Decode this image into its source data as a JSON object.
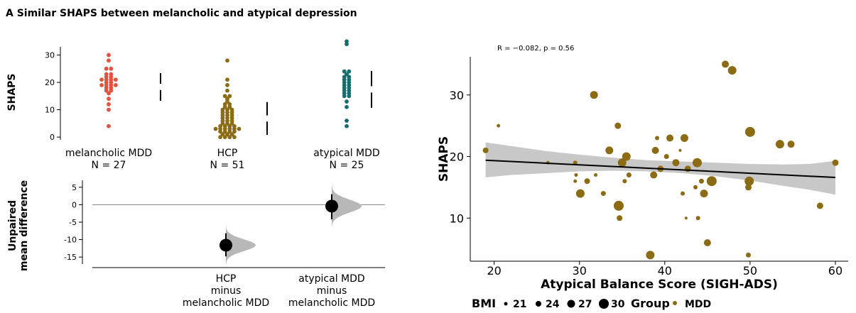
{
  "figure_title": "A  Similar SHAPS between melancholic and atypical depression",
  "colors": {
    "melancholic": "#e0533e",
    "hcp": "#8b6b14",
    "atypical": "#176d6d",
    "scatter_point": "#8b6b14",
    "ci_band": "#c8c8c8",
    "dabest_curve": "#b8b8b8"
  },
  "chart_data": [
    {
      "type": "scatter",
      "panel": "swarm",
      "ylabel": "SHAPS",
      "ylim": [
        -1,
        33
      ],
      "yticks": [
        0,
        10,
        20,
        30
      ],
      "grid": false,
      "groups": [
        {
          "label": "melancholic MDD\nN = 27",
          "color_key": "melancholic",
          "values": [
            30,
            28,
            25,
            25,
            23,
            23,
            22,
            22,
            21,
            21,
            21,
            21,
            20,
            20,
            19,
            19,
            19,
            19,
            18,
            18,
            17,
            17,
            16,
            14,
            12,
            10,
            4
          ],
          "mean_sd_bar": [
            13.3,
            17.2,
            19.5,
            23.4
          ]
        },
        {
          "label": "HCP\nN = 51",
          "color_key": "hcp",
          "values": [
            28,
            21,
            19,
            17,
            15,
            15,
            14,
            13,
            12,
            12,
            11,
            11,
            10,
            10,
            10,
            9,
            9,
            9,
            8,
            8,
            8,
            7,
            7,
            7,
            6,
            6,
            6,
            5,
            5,
            5,
            4,
            4,
            4,
            4,
            3,
            3,
            3,
            3,
            3,
            3,
            2,
            2,
            2,
            2,
            1,
            1,
            1,
            0,
            0,
            0,
            0
          ],
          "mean_sd_bar": [
            0.8,
            5.7,
            7.9,
            12.8
          ]
        },
        {
          "label": "atypical MDD\nN = 25",
          "color_key": "atypical",
          "values": [
            35,
            34,
            24,
            24,
            23,
            22,
            22,
            21,
            21,
            20,
            20,
            19,
            19,
            18,
            18,
            17,
            17,
            16,
            16,
            15,
            15,
            13,
            11,
            6,
            4
          ],
          "mean_sd_bar": [
            10.7,
            16.3,
            18.6,
            24.2
          ]
        }
      ]
    },
    {
      "type": "scatter",
      "panel": "estimation",
      "ylabel": "Unpaired\nmean difference",
      "ylim": [
        -17,
        7
      ],
      "yticks": [
        5,
        0,
        -5,
        -10,
        -15
      ],
      "zero_line": true,
      "comparisons": [
        {
          "label": "HCP\nminus\nmelancholic MDD",
          "mean_difference": -11.6,
          "ci": [
            -14.8,
            -8.2
          ]
        },
        {
          "label": "atypical MDD\nminus\nmelancholic MDD",
          "mean_difference": -0.4,
          "ci": [
            -4.2,
            3.0
          ]
        }
      ]
    },
    {
      "type": "scatter",
      "panel": "correlation",
      "xlabel": "Atypical Balance Score (SIGH-ADS)",
      "ylabel": "SHAPS",
      "xlim": [
        17.2,
        61.5
      ],
      "ylim": [
        3,
        36.2
      ],
      "xticks": [
        20,
        30,
        40,
        50,
        60
      ],
      "yticks": [
        10,
        20,
        30
      ],
      "annotation": "R = −0.082, p = 0.56",
      "regression": {
        "x": [
          19,
          60
        ],
        "y": [
          19.4,
          16.6
        ]
      },
      "ci_band": {
        "x": [
          19,
          22,
          26,
          30,
          34,
          38,
          42,
          46,
          50,
          54,
          57,
          60
        ],
        "lower": [
          16.6,
          17.0,
          17.3,
          17.6,
          17.7,
          17.6,
          17.3,
          16.8,
          16.1,
          15.2,
          14.6,
          13.8
        ],
        "upper": [
          22.3,
          21.7,
          20.9,
          20.3,
          19.8,
          19.4,
          19.2,
          19.0,
          18.8,
          18.7,
          18.8,
          19.3
        ]
      },
      "points": [
        {
          "x": 19,
          "y": 21,
          "bmi": 24
        },
        {
          "x": 20.5,
          "y": 25,
          "bmi": 21
        },
        {
          "x": 26.3,
          "y": 19,
          "bmi": 21
        },
        {
          "x": 29.5,
          "y": 19,
          "bmi": 22
        },
        {
          "x": 30.1,
          "y": 14,
          "bmi": 28
        },
        {
          "x": 29.5,
          "y": 16,
          "bmi": 21
        },
        {
          "x": 29.6,
          "y": 17,
          "bmi": 21
        },
        {
          "x": 30.9,
          "y": 16,
          "bmi": 24
        },
        {
          "x": 31.7,
          "y": 30,
          "bmi": 27
        },
        {
          "x": 31.9,
          "y": 17,
          "bmi": 21
        },
        {
          "x": 32.8,
          "y": 14,
          "bmi": 23
        },
        {
          "x": 33.5,
          "y": 21,
          "bmi": 27
        },
        {
          "x": 34.5,
          "y": 25,
          "bmi": 25
        },
        {
          "x": 34.6,
          "y": 12,
          "bmi": 30
        },
        {
          "x": 34.7,
          "y": 10,
          "bmi": 24
        },
        {
          "x": 35.0,
          "y": 19,
          "bmi": 28
        },
        {
          "x": 35.5,
          "y": 20,
          "bmi": 28
        },
        {
          "x": 35.3,
          "y": 16,
          "bmi": 22
        },
        {
          "x": 35.8,
          "y": 17,
          "bmi": 23
        },
        {
          "x": 38.3,
          "y": 4,
          "bmi": 28
        },
        {
          "x": 38.7,
          "y": 17,
          "bmi": 26
        },
        {
          "x": 38.9,
          "y": 21,
          "bmi": 26
        },
        {
          "x": 39.1,
          "y": 23,
          "bmi": 22
        },
        {
          "x": 39.5,
          "y": 18,
          "bmi": 25
        },
        {
          "x": 40.2,
          "y": 20,
          "bmi": 23
        },
        {
          "x": 40.6,
          "y": 23,
          "bmi": 26
        },
        {
          "x": 41.3,
          "y": 19,
          "bmi": 26
        },
        {
          "x": 41.8,
          "y": 21,
          "bmi": 20
        },
        {
          "x": 42.1,
          "y": 14,
          "bmi": 22
        },
        {
          "x": 42.3,
          "y": 23,
          "bmi": 27
        },
        {
          "x": 42.5,
          "y": 10,
          "bmi": 20
        },
        {
          "x": 42.7,
          "y": 18,
          "bmi": 25
        },
        {
          "x": 43.6,
          "y": 15,
          "bmi": 22
        },
        {
          "x": 43.8,
          "y": 19,
          "bmi": 29
        },
        {
          "x": 43.9,
          "y": 10,
          "bmi": 22
        },
        {
          "x": 44.3,
          "y": 16,
          "bmi": 23
        },
        {
          "x": 44.6,
          "y": 14,
          "bmi": 27
        },
        {
          "x": 45.0,
          "y": 6,
          "bmi": 26
        },
        {
          "x": 45.5,
          "y": 16,
          "bmi": 30
        },
        {
          "x": 47.1,
          "y": 35,
          "bmi": 26
        },
        {
          "x": 47.9,
          "y": 34,
          "bmi": 28
        },
        {
          "x": 49.9,
          "y": 16,
          "bmi": 29
        },
        {
          "x": 49.8,
          "y": 15,
          "bmi": 25
        },
        {
          "x": 50.0,
          "y": 24,
          "bmi": 30
        },
        {
          "x": 49.8,
          "y": 4,
          "bmi": 23
        },
        {
          "x": 53.5,
          "y": 22,
          "bmi": 28
        },
        {
          "x": 54.8,
          "y": 22,
          "bmi": 26
        },
        {
          "x": 58.2,
          "y": 12,
          "bmi": 25
        },
        {
          "x": 60.0,
          "y": 19,
          "bmi": 25
        }
      ]
    }
  ],
  "legend": {
    "bmi_title": "BMI",
    "bmi_items": [
      {
        "label": "21",
        "bmi": 21
      },
      {
        "label": "24",
        "bmi": 24
      },
      {
        "label": "27",
        "bmi": 27
      },
      {
        "label": "30",
        "bmi": 30
      }
    ],
    "group_title": "Group",
    "group_items": [
      {
        "label": "MDD",
        "bmi": 22
      }
    ]
  }
}
